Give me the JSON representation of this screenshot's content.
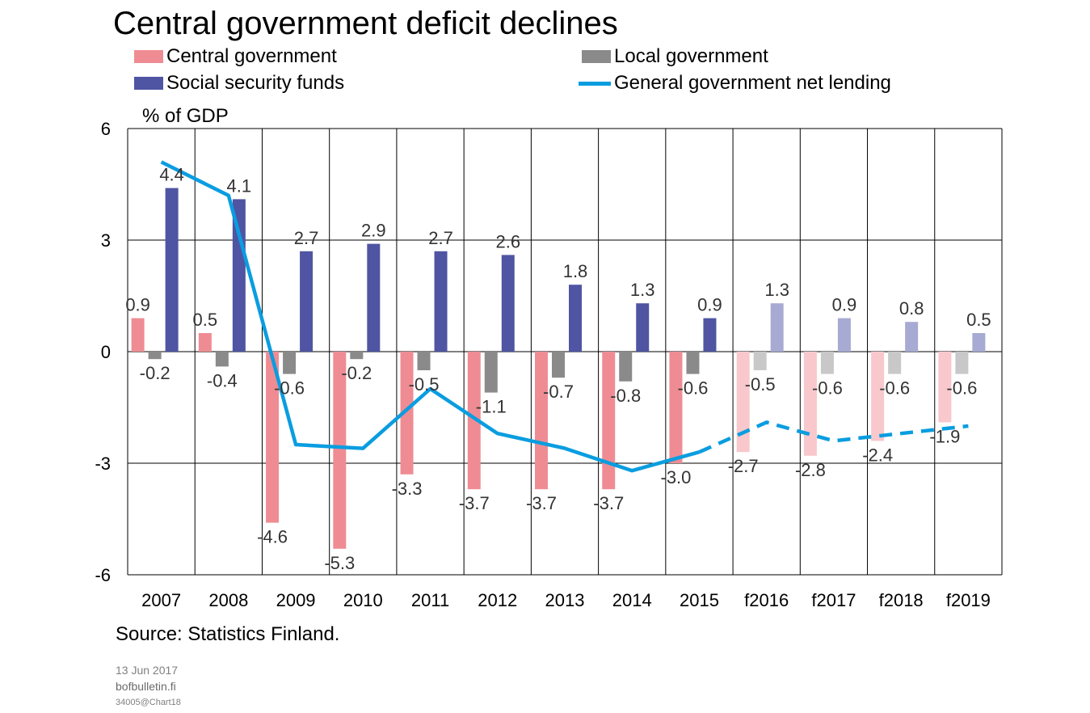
{
  "chart_data": {
    "type": "bar",
    "title": "Central government deficit declines",
    "ylabel": "% of GDP",
    "ylim": [
      -6,
      6
    ],
    "yticks": [
      6,
      3,
      0,
      -3,
      -6
    ],
    "grid": true,
    "legend_position": "top",
    "categories": [
      "2007",
      "2008",
      "2009",
      "2010",
      "2011",
      "2012",
      "2013",
      "2014",
      "2015",
      "f2016",
      "f2017",
      "f2018",
      "f2019"
    ],
    "forecast_from_index": 9,
    "series": [
      {
        "name": "Central government",
        "type": "bar",
        "color": "#ef8c93",
        "forecast_color": "#f8c8cc",
        "values": [
          0.9,
          0.5,
          -4.6,
          -5.3,
          -3.3,
          -3.7,
          -3.7,
          -3.7,
          -3.0,
          -2.7,
          -2.8,
          -2.4,
          -1.9
        ],
        "labels": [
          "0.9",
          "0.5",
          "-4.6",
          "-5.3",
          "-3.3",
          "-3.7",
          "-3.7",
          "-3.7",
          "-3.0",
          "-2.7",
          "-2.8",
          "-2.4",
          "-1.9"
        ]
      },
      {
        "name": "Local government",
        "type": "bar",
        "color": "#8a8a8a",
        "forecast_color": "#c8c8c8",
        "values": [
          -0.2,
          -0.4,
          -0.6,
          -0.2,
          -0.5,
          -1.1,
          -0.7,
          -0.8,
          -0.6,
          -0.5,
          -0.6,
          -0.6,
          -0.6
        ],
        "labels": [
          "-0.2",
          "-0.4",
          "-0.6",
          "-0.2",
          "-0.5",
          "-1.1",
          "-0.7",
          "-0.8",
          "-0.6",
          "-0.5",
          "-0.6",
          "-0.6",
          "-0.6"
        ]
      },
      {
        "name": "Social security funds",
        "type": "bar",
        "color": "#4f55a2",
        "forecast_color": "#a7aad2",
        "values": [
          4.4,
          4.1,
          2.7,
          2.9,
          2.7,
          2.6,
          1.8,
          1.3,
          0.9,
          1.3,
          0.9,
          0.8,
          0.5
        ],
        "labels": [
          "4.4",
          "4.1",
          "2.7",
          "2.9",
          "2.7",
          "2.6",
          "1.8",
          "1.3",
          "0.9",
          "1.3",
          "0.9",
          "0.8",
          "0.5"
        ]
      },
      {
        "name": "General government net lending",
        "type": "line",
        "color": "#0a9de0",
        "values": [
          5.1,
          4.2,
          -2.5,
          -2.6,
          -1.0,
          -2.2,
          -2.6,
          -3.2,
          -2.7,
          -1.9,
          -2.4,
          -2.2,
          -2.0
        ]
      }
    ]
  },
  "footer": {
    "source": "Source: Statistics Finland.",
    "date": "13 Jun 2017",
    "site": "bofbulletin.fi",
    "chart_id": "34005@Chart18"
  }
}
